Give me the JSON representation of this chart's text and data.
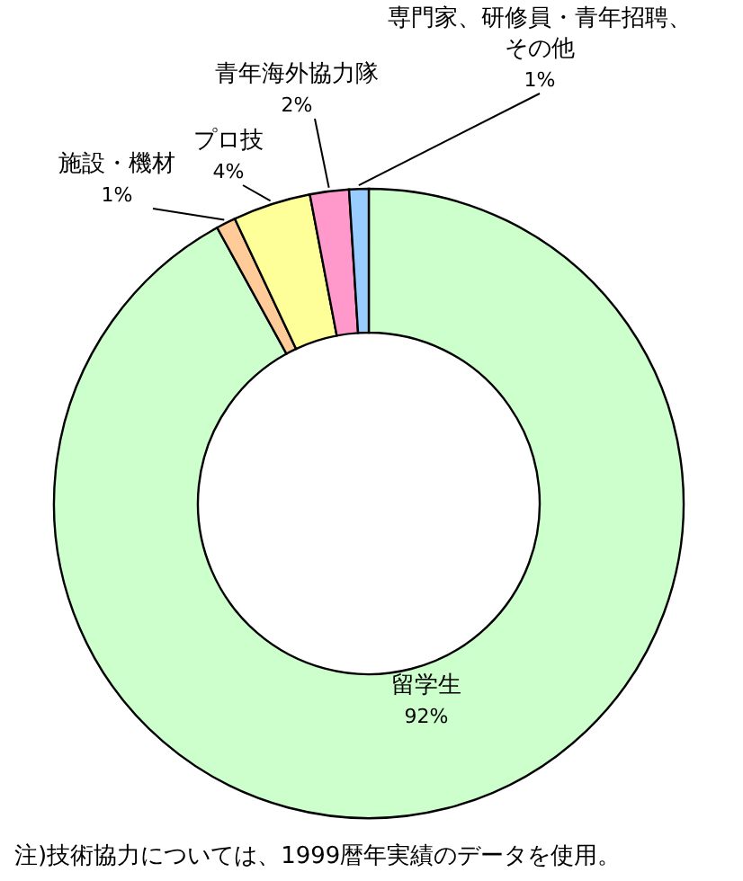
{
  "chart_data": {
    "type": "donut",
    "categories": [
      "留学生",
      "施設・機材",
      "プロ技",
      "青年海外協力隊",
      "専門家、研修員・青年招聘、その他"
    ],
    "values": [
      92,
      1,
      4,
      2,
      1
    ],
    "value_labels": [
      "92%",
      "1%",
      "4%",
      "2%",
      "1%"
    ],
    "colors": [
      "#ccffcc",
      "#ffcc99",
      "#ffff99",
      "#ff99cc",
      "#99ccff"
    ],
    "annotations": [
      "注)技術協力については、1999暦年実績のデータを使用。"
    ]
  }
}
